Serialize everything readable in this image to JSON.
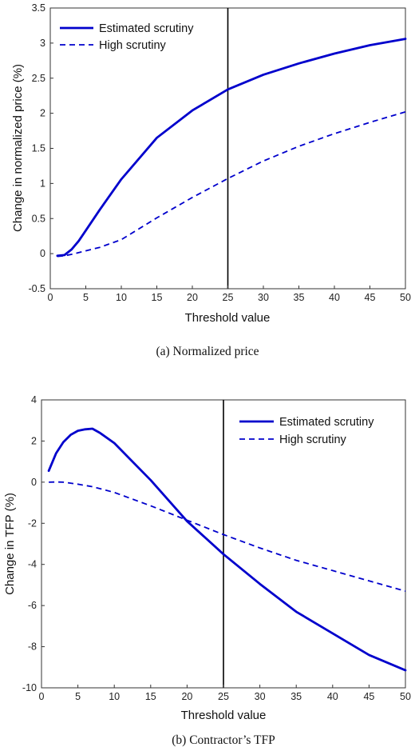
{
  "chart_data": [
    {
      "type": "line",
      "caption": "(a) Normalized price",
      "xlabel": "Threshold value",
      "ylabel": "Change in normalized price (%)",
      "xlim": [
        0,
        50
      ],
      "ylim": [
        -0.5,
        3.5
      ],
      "xticks": [
        0,
        5,
        10,
        15,
        20,
        25,
        30,
        35,
        40,
        45,
        50
      ],
      "yticks": [
        -0.5,
        0,
        0.5,
        1,
        1.5,
        2,
        2.5,
        3,
        3.5
      ],
      "ytick_labels": [
        "-0.5",
        "0",
        "0.5",
        "1",
        "1.5",
        "2",
        "2.5",
        "3",
        "3.5"
      ],
      "grid": false,
      "legend_position": "top-left",
      "vline_x": 25,
      "color": "#0000cc",
      "series": [
        {
          "name": "Estimated scrutiny",
          "style": "solid",
          "x": [
            1,
            2,
            3,
            4,
            5,
            7,
            10,
            15,
            20,
            25,
            30,
            35,
            40,
            45,
            50
          ],
          "y": [
            -0.03,
            -0.02,
            0.06,
            0.18,
            0.33,
            0.63,
            1.06,
            1.65,
            2.04,
            2.34,
            2.55,
            2.71,
            2.85,
            2.97,
            3.06
          ]
        },
        {
          "name": "High scrutiny",
          "style": "dashed",
          "x": [
            1,
            2,
            3,
            5,
            7,
            10,
            15,
            20,
            25,
            30,
            35,
            40,
            45,
            50
          ],
          "y": [
            -0.04,
            -0.03,
            -0.01,
            0.04,
            0.09,
            0.2,
            0.51,
            0.8,
            1.07,
            1.32,
            1.53,
            1.71,
            1.87,
            2.02
          ]
        }
      ]
    },
    {
      "type": "line",
      "caption": "(b) Contractor’s TFP",
      "xlabel": "Threshold value",
      "ylabel": "Change in TFP (%)",
      "xlim": [
        0,
        50
      ],
      "ylim": [
        -10,
        4
      ],
      "xticks": [
        0,
        5,
        10,
        15,
        20,
        25,
        30,
        35,
        40,
        45,
        50
      ],
      "yticks": [
        -10,
        -8,
        -6,
        -4,
        -2,
        0,
        2,
        4
      ],
      "ytick_labels": [
        "-10",
        "-8",
        "-6",
        "-4",
        "-2",
        "0",
        "2",
        "4"
      ],
      "grid": false,
      "legend_position": "top-right",
      "vline_x": 25,
      "color": "#0000cc",
      "series": [
        {
          "name": "Estimated scrutiny",
          "style": "solid",
          "x": [
            1,
            2,
            3,
            4,
            5,
            6,
            7,
            8,
            10,
            15,
            20,
            25,
            30,
            35,
            40,
            45,
            50
          ],
          "y": [
            0.55,
            1.4,
            1.95,
            2.3,
            2.5,
            2.57,
            2.6,
            2.4,
            1.9,
            0.1,
            -1.9,
            -3.5,
            -4.95,
            -6.3,
            -7.35,
            -8.4,
            -9.15
          ]
        },
        {
          "name": "High scrutiny",
          "style": "dashed",
          "x": [
            1,
            2,
            3,
            4,
            5,
            7,
            10,
            15,
            20,
            25,
            30,
            35,
            40,
            45,
            50
          ],
          "y": [
            0.0,
            0.01,
            0.0,
            -0.05,
            -0.1,
            -0.22,
            -0.5,
            -1.15,
            -1.85,
            -2.55,
            -3.2,
            -3.8,
            -4.3,
            -4.8,
            -5.3
          ]
        }
      ]
    }
  ]
}
